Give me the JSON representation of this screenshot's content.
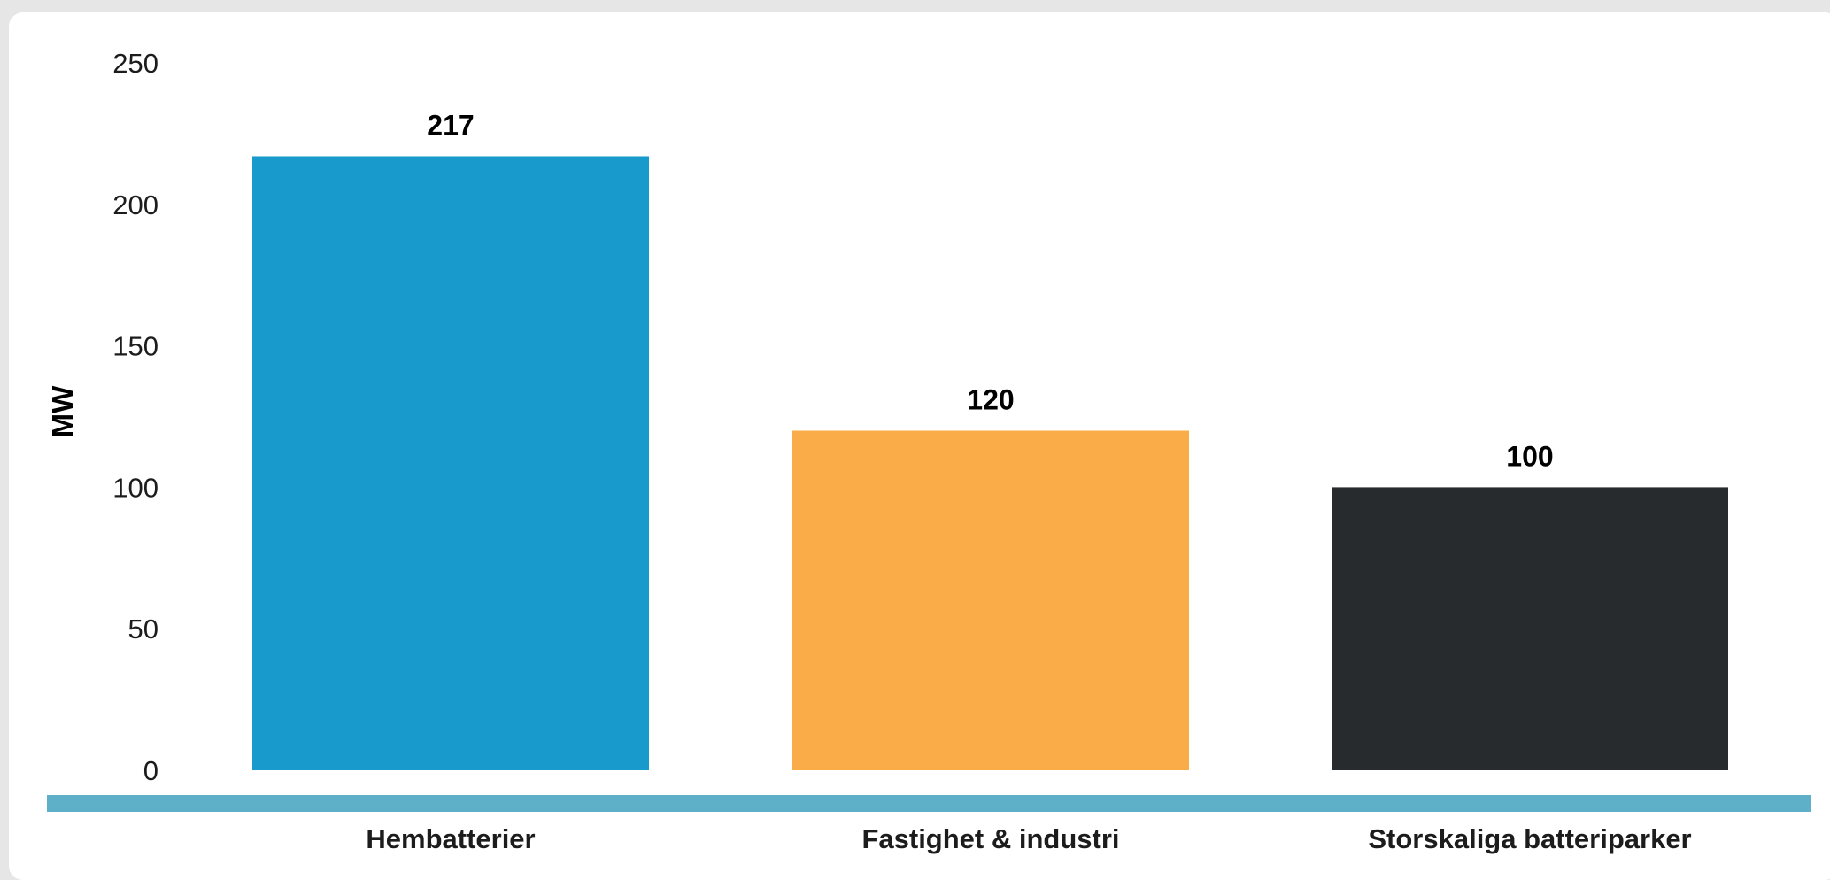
{
  "chart_data": {
    "type": "bar",
    "categories": [
      "Hembatterier",
      "Fastighet & industri",
      "Storskaliga batteriparker"
    ],
    "values": [
      217,
      120,
      100
    ],
    "value_labels": [
      "217",
      "120",
      "100"
    ],
    "title": "",
    "xlabel": "",
    "ylabel": "MW",
    "ylim": [
      0,
      250
    ],
    "yticks": [
      "0",
      "50",
      "100",
      "150",
      "200",
      "250"
    ],
    "grid": false,
    "legend": "none",
    "colors": [
      "#189bcc",
      "#f9ac48",
      "#282b2e"
    ],
    "baseline_color": "#5db0c8"
  }
}
